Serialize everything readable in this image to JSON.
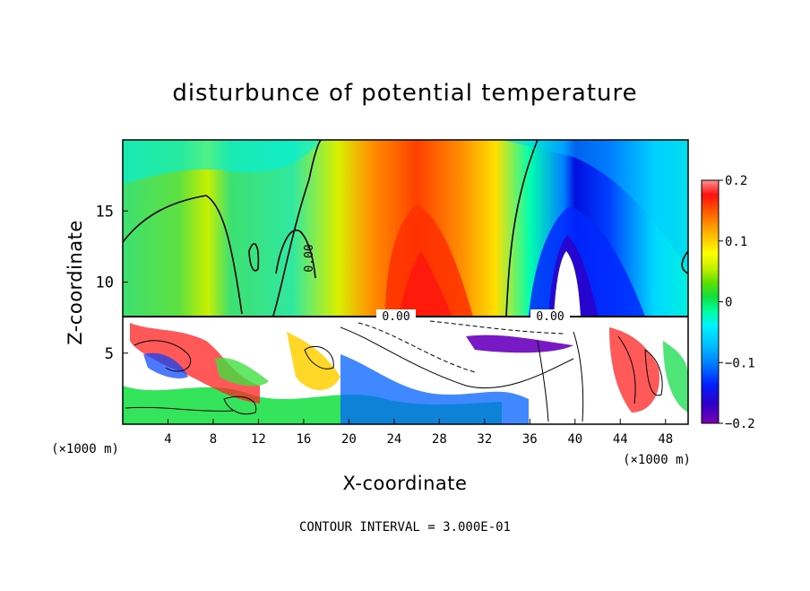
{
  "chart_data": {
    "type": "heatmap",
    "title": "disturbunce of potential temperature",
    "xlabel": "X-coordinate",
    "ylabel": "Z-coordinate",
    "x_unit": "(×1000 m)",
    "z_unit": "(×1000 m)",
    "xlim": [
      0,
      50
    ],
    "ylim": [
      0,
      20
    ],
    "x_ticks": [
      "4",
      "8",
      "12",
      "16",
      "20",
      "24",
      "28",
      "32",
      "36",
      "40",
      "44",
      "48"
    ],
    "y_ticks": [
      "5",
      "10",
      "15"
    ],
    "colorbar": {
      "range": [
        -0.2,
        0.2
      ],
      "ticks": [
        "0.2",
        "0.1",
        "0",
        "−0.1",
        "−0.2"
      ],
      "colors": [
        "#7a00b0",
        "#2d00c8",
        "#0020ff",
        "#0078ff",
        "#00bfff",
        "#00f0ff",
        "#00ffa0",
        "#10e040",
        "#60e000",
        "#c8f000",
        "#ffff00",
        "#ffc800",
        "#ff9000",
        "#ff5000",
        "#ff1010",
        "#ff8888"
      ]
    },
    "contour_labels": [
      "0.00",
      "0.00",
      "0.00"
    ],
    "footer": "CONTOUR INTERVAL = 3.000E-01",
    "regions_upper": [
      {
        "x_range": [
          0,
          6
        ],
        "value": 0.02
      },
      {
        "x_range": [
          6,
          10
        ],
        "value": 0.07
      },
      {
        "x_range": [
          10,
          18
        ],
        "value": 0.0
      },
      {
        "x_range": [
          18,
          24
        ],
        "value": 0.06
      },
      {
        "x_range": [
          24,
          30
        ],
        "value": 0.15
      },
      {
        "x_range": [
          30,
          34
        ],
        "value": 0.08
      },
      {
        "x_range": [
          34,
          42
        ],
        "value": -0.14
      },
      {
        "x_range": [
          42,
          50
        ],
        "value": -0.06
      }
    ]
  }
}
